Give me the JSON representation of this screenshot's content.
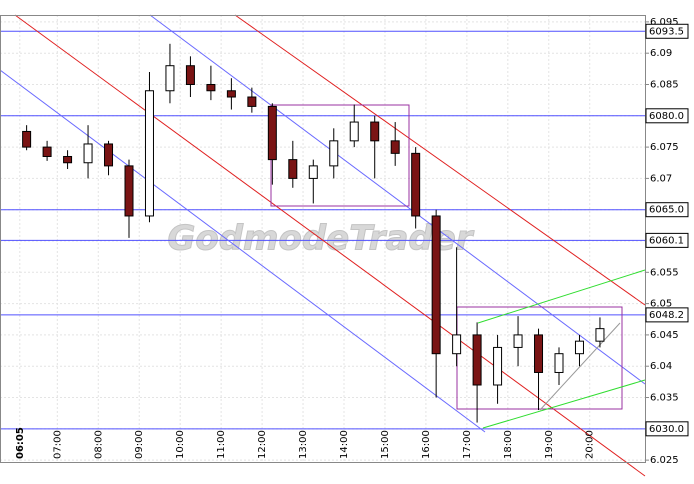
{
  "chart_data": {
    "type": "candlestick",
    "watermark": "GodmodeTrader",
    "x": [
      6.25,
      6.75,
      7.25,
      7.75,
      8.25,
      8.75,
      9.25,
      9.75,
      10.25,
      10.75,
      11.25,
      11.75,
      12.25,
      12.75,
      13.25,
      13.75,
      14.25,
      14.75,
      15.25,
      15.75,
      16.25,
      16.75,
      17.25,
      17.75,
      18.25,
      18.75,
      19.25,
      19.75,
      20.25
    ],
    "open": [
      6.0775,
      6.075,
      6.0735,
      6.0725,
      6.0755,
      6.072,
      6.064,
      6.084,
      6.088,
      6.085,
      6.084,
      6.083,
      6.0815,
      6.073,
      6.07,
      6.072,
      6.076,
      6.079,
      6.076,
      6.074,
      6.064,
      6.042,
      6.045,
      6.037,
      6.043,
      6.045,
      6.039,
      6.042,
      6.044
    ],
    "high": [
      6.0785,
      6.076,
      6.0745,
      6.0785,
      6.076,
      6.073,
      6.087,
      6.0915,
      6.0895,
      6.088,
      6.086,
      6.0845,
      6.082,
      6.076,
      6.073,
      6.078,
      6.0818,
      6.08,
      6.079,
      6.075,
      6.065,
      6.059,
      6.047,
      6.045,
      6.048,
      6.046,
      6.043,
      6.045,
      6.0478
    ],
    "low": [
      6.0745,
      6.0728,
      6.0715,
      6.07,
      6.0705,
      6.0605,
      6.063,
      6.082,
      6.083,
      6.0825,
      6.081,
      6.0805,
      6.069,
      6.0685,
      6.066,
      6.07,
      6.075,
      6.07,
      6.072,
      6.062,
      6.035,
      6.04,
      6.031,
      6.034,
      6.04,
      6.033,
      6.037,
      6.04,
      6.043
    ],
    "close": [
      6.075,
      6.0735,
      6.0725,
      6.0755,
      6.072,
      6.064,
      6.084,
      6.088,
      6.085,
      6.084,
      6.083,
      6.0815,
      6.073,
      6.07,
      6.072,
      6.076,
      6.079,
      6.076,
      6.074,
      6.064,
      6.042,
      6.045,
      6.037,
      6.043,
      6.045,
      6.039,
      6.042,
      6.044,
      6.046
    ],
    "up_color": "#ffffff",
    "down_color": "#7a1414",
    "xlim": [
      5.6,
      21.35
    ],
    "ylim": [
      6.0247,
      6.0961
    ],
    "xticks": [
      {
        "value": 6.0833,
        "label": "06:05"
      },
      {
        "value": 7,
        "label": "07:00"
      },
      {
        "value": 8,
        "label": "08:00"
      },
      {
        "value": 9,
        "label": "09:00"
      },
      {
        "value": 10,
        "label": "10:00"
      },
      {
        "value": 11,
        "label": "11:00"
      },
      {
        "value": 12,
        "label": "12:00"
      },
      {
        "value": 13,
        "label": "13:00"
      },
      {
        "value": 14,
        "label": "14:00"
      },
      {
        "value": 15,
        "label": "15:00"
      },
      {
        "value": 16,
        "label": "16:00"
      },
      {
        "value": 17,
        "label": "17:00"
      },
      {
        "value": 18,
        "label": "18:00"
      },
      {
        "value": 19,
        "label": "19:00"
      },
      {
        "value": 20,
        "label": "20:00"
      }
    ],
    "yticks": [
      6.025,
      6.03,
      6.035,
      6.04,
      6.045,
      6.05,
      6.055,
      6.06,
      6.065,
      6.07,
      6.075,
      6.08,
      6.085,
      6.09,
      6.095
    ],
    "hlines": [
      {
        "value": 6.0935,
        "label": "6093.5"
      },
      {
        "value": 6.08,
        "label": "6080.0"
      },
      {
        "value": 6.065,
        "label": "6065.0"
      },
      {
        "value": 6.0601,
        "label": "6060.1"
      },
      {
        "value": 6.0482,
        "label": "6048.2"
      },
      {
        "value": 6.03,
        "label": "6030.0"
      }
    ],
    "grid": true
  }
}
